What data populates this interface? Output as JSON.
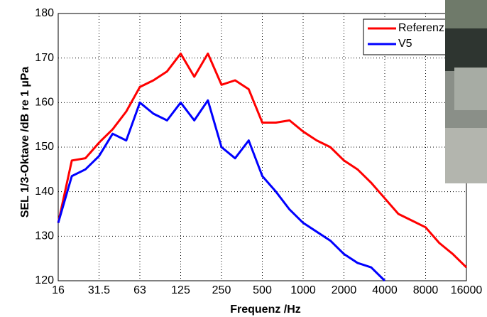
{
  "chart_data": {
    "type": "line",
    "xlabel": "Frequenz /Hz",
    "ylabel": "SEL 1/3-Oktave /dB re 1 µPa",
    "categories": [
      "16",
      null,
      null,
      "31.5",
      null,
      null,
      "63",
      null,
      null,
      "125",
      null,
      null,
      "250",
      null,
      null,
      "500",
      null,
      null,
      "1000",
      null,
      null,
      "2000",
      null,
      null,
      "4000",
      null,
      null,
      "8000",
      null,
      null,
      "16000"
    ],
    "series": [
      {
        "name": "Referenz",
        "color": "#ff0000",
        "values": [
          133,
          147,
          147.5,
          151,
          154,
          158,
          163.5,
          165,
          167,
          171,
          165.8,
          171,
          164,
          165,
          163,
          155.5,
          155.5,
          156,
          153.5,
          151.5,
          150,
          147,
          145,
          142,
          138.5,
          135,
          133.5,
          132,
          128.5,
          126,
          123
        ]
      },
      {
        "name": "V5",
        "color": "#0000ff",
        "values": [
          133,
          143.5,
          145,
          148,
          153,
          151.5,
          160,
          157.5,
          156,
          160,
          156,
          160.5,
          150,
          147.5,
          151.5,
          143.5,
          140,
          136,
          133,
          131,
          129,
          126,
          124,
          123,
          120,
          null,
          null,
          null,
          null,
          null,
          null
        ]
      }
    ],
    "ylim": [
      120,
      180
    ],
    "yticks": [
      120,
      130,
      140,
      150,
      160,
      170,
      180
    ],
    "grid": true,
    "legend": "upper right"
  }
}
